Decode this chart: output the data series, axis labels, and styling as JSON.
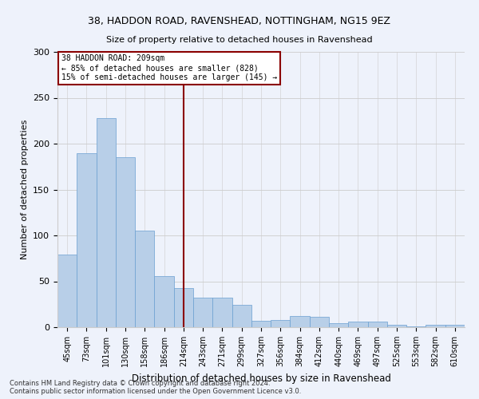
{
  "title1": "38, HADDON ROAD, RAVENSHEAD, NOTTINGHAM, NG15 9EZ",
  "title2": "Size of property relative to detached houses in Ravenshead",
  "xlabel": "Distribution of detached houses by size in Ravenshead",
  "ylabel": "Number of detached properties",
  "categories": [
    "45sqm",
    "73sqm",
    "101sqm",
    "130sqm",
    "158sqm",
    "186sqm",
    "214sqm",
    "243sqm",
    "271sqm",
    "299sqm",
    "327sqm",
    "356sqm",
    "384sqm",
    "412sqm",
    "440sqm",
    "469sqm",
    "497sqm",
    "525sqm",
    "553sqm",
    "582sqm",
    "610sqm"
  ],
  "values": [
    79,
    190,
    228,
    185,
    105,
    56,
    43,
    32,
    32,
    24,
    7,
    8,
    12,
    11,
    4,
    6,
    6,
    3,
    1,
    3,
    3
  ],
  "bar_color": "#b8cfe8",
  "bar_edge_color": "#6a9fd0",
  "vline_x_index": 6,
  "vline_color": "#8b0000",
  "annotation_line1": "38 HADDON ROAD: 209sqm",
  "annotation_line2": "← 85% of detached houses are smaller (828)",
  "annotation_line3": "15% of semi-detached houses are larger (145) →",
  "annotation_box_color": "#ffffff",
  "annotation_edge_color": "#8b0000",
  "ylim": [
    0,
    300
  ],
  "yticks": [
    0,
    50,
    100,
    150,
    200,
    250,
    300
  ],
  "footnote": "Contains HM Land Registry data © Crown copyright and database right 2024.\nContains public sector information licensed under the Open Government Licence v3.0.",
  "background_color": "#eef2fb",
  "plot_bg_color": "#eef2fb"
}
